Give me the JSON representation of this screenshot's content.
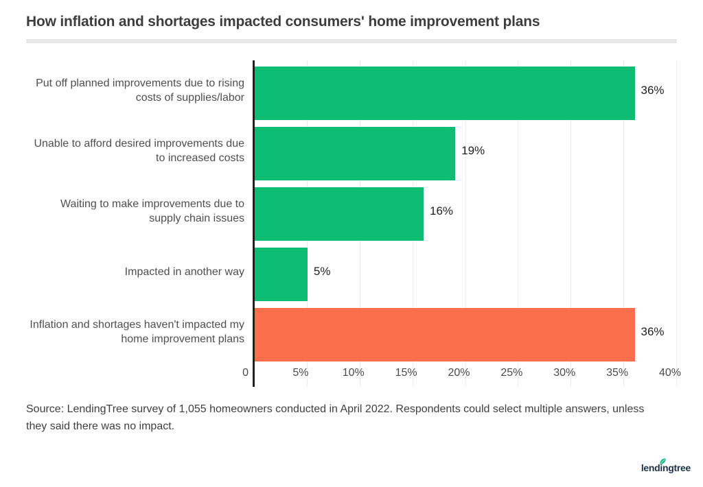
{
  "header": {
    "title": "How inflation and shortages impacted consumers' home improvement plans"
  },
  "chart_data": {
    "type": "bar",
    "orientation": "horizontal",
    "title": "How inflation and shortages impacted consumers' home improvement plans",
    "categories": [
      "Put off planned improvements due to rising\ncosts of supplies/labor",
      "Unable to afford desired improvements due\nto increased costs",
      "Waiting to make improvements due to\nsupply chain issues",
      "Impacted in another way",
      "Inflation and shortages haven't impacted my\nhome improvement plans"
    ],
    "values": [
      36,
      19,
      16,
      5,
      36
    ],
    "value_labels": [
      "36%",
      "19%",
      "16%",
      "5%",
      "36%"
    ],
    "bar_colors": [
      "#0cbd73",
      "#0cbd73",
      "#0cbd73",
      "#0cbd73",
      "#fc6f4c"
    ],
    "xlabel": "",
    "ylabel": "",
    "xlim": [
      0,
      40
    ],
    "x_ticks": [
      "0",
      "5%",
      "10%",
      "15%",
      "20%",
      "25%",
      "30%",
      "35%",
      "40%"
    ],
    "x_tick_values": [
      0,
      5,
      10,
      15,
      20,
      25,
      30,
      35,
      40
    ],
    "grid": true,
    "legend_position": "none"
  },
  "footer": {
    "source": "Source: LendingTree survey of 1,055 homeowners conducted in April 2022. Respondents could select multiple answers, unless\nthey said there was no impact."
  },
  "logo": {
    "text": "lendingtree",
    "text_color": "#1d3147",
    "leaf_color": "#00b974"
  },
  "colors": {
    "bar_green": "#0cbd73",
    "bar_orange": "#fc6f4c",
    "axis_line": "#1f1f1f",
    "gridline": "#ebebeb",
    "divider": "#e8e8e8"
  }
}
